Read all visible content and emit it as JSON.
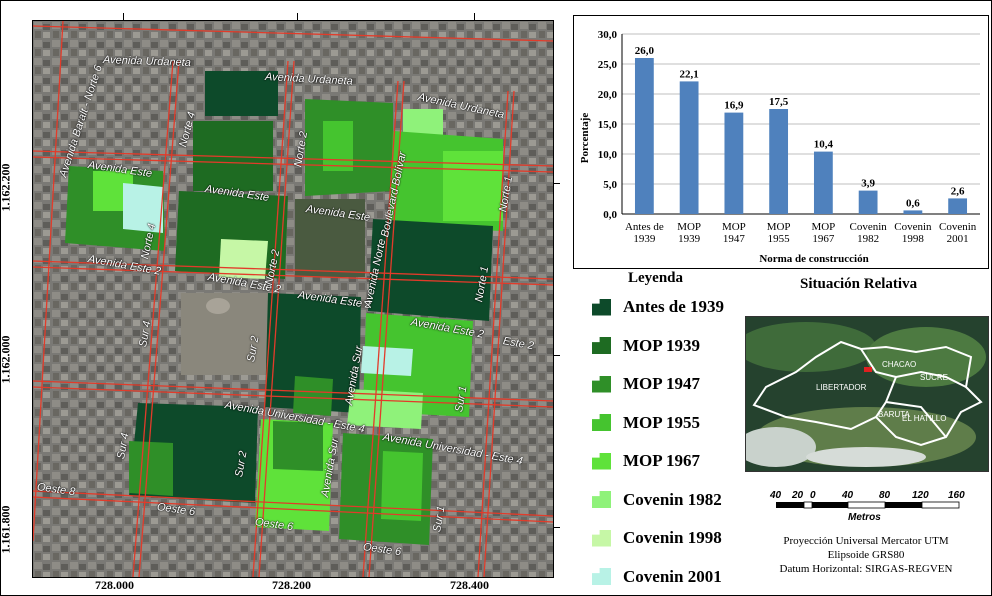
{
  "chart_data": {
    "type": "bar",
    "categories": [
      "Antes de 1939",
      "MOP 1939",
      "MOP 1947",
      "MOP 1955",
      "MOP 1967",
      "Covenin 1982",
      "Covenin 1998",
      "Covenin 2001"
    ],
    "category_lines": [
      [
        "Antes de",
        "1939"
      ],
      [
        "MOP",
        "1939"
      ],
      [
        "MOP",
        "1947"
      ],
      [
        "MOP",
        "1955"
      ],
      [
        "MOP",
        "1967"
      ],
      [
        "Covenin",
        "1982"
      ],
      [
        "Covenin",
        "1998"
      ],
      [
        "Covenin",
        "2001"
      ]
    ],
    "values": [
      26.0,
      22.1,
      16.9,
      17.5,
      10.4,
      3.9,
      0.6,
      2.6
    ],
    "value_labels": [
      "26,0",
      "22,1",
      "16,9",
      "17,5",
      "10,4",
      "3,9",
      "0,6",
      "2,6"
    ],
    "ylabel": "Porcentaje",
    "xlabel": "Norma de construcción",
    "ylim": [
      0,
      30
    ],
    "yticks": [
      "0,0",
      "5,0",
      "10,0",
      "15,0",
      "20,0",
      "25,0",
      "30,0"
    ],
    "grid": true,
    "bar_color": "#4f81bd"
  },
  "legend": {
    "title": "Leyenda",
    "items": [
      {
        "label": "Antes de 1939",
        "color": "#0d4a2a"
      },
      {
        "label": "MOP 1939",
        "color": "#1e6b22"
      },
      {
        "label": "MOP 1947",
        "color": "#2f8f28"
      },
      {
        "label": "MOP 1955",
        "color": "#45c42f"
      },
      {
        "label": "MOP 1967",
        "color": "#5fe23a"
      },
      {
        "label": "Covenin 1982",
        "color": "#8ff27a"
      },
      {
        "label": "Covenin 1998",
        "color": "#c6f7a6"
      },
      {
        "label": "Covenin 2001",
        "color": "#b8f2e6"
      }
    ]
  },
  "relative": {
    "title": "Situación Relativa",
    "municipalities": [
      "CHACAO",
      "SUCRE",
      "LIBERTADOR",
      "BARUTA",
      "EL HATILLO"
    ]
  },
  "streets": [
    "Avenida Urdaneta",
    "Avenida Urdaneta",
    "Avenida Urdaneta",
    "Avenida Baralt - Norte 6",
    "Norte 4",
    "Norte 2",
    "Boulevard Bolívar",
    "Norte 1",
    "Avenida Este",
    "Avenida Este",
    "Avenida Este",
    "Avenida Este 2",
    "Avenida Este 2",
    "Avenida Este 2",
    "Avenida Norte",
    "Norte 4",
    "Norte 2",
    "Norte 1",
    "Avenida Este 2",
    "Este 2",
    "Sur 4",
    "Sur 2",
    "Avenida Sur",
    "Sur 1",
    "Avenida Universidad - Este 4",
    "Avenida Universidad - Este 4",
    "Sur 4",
    "Sur 2",
    "Avenida Sur",
    "Sur 1",
    "Oeste 8",
    "Oeste 6",
    "Oeste 6",
    "Oeste 6"
  ],
  "coords": {
    "x": [
      "728.000",
      "728.200",
      "728.400"
    ],
    "y": [
      "1.162.200",
      "1.162.000",
      "1.161.800"
    ]
  },
  "scale": {
    "labels": [
      "40",
      "20",
      "0",
      "40",
      "80",
      "120",
      "160"
    ],
    "unit": "Metros"
  },
  "projection": [
    "Proyección Universal Mercator UTM",
    "Elipsoide GRS80",
    "Datum Horizontal: SIRGAS-REGVEN"
  ]
}
